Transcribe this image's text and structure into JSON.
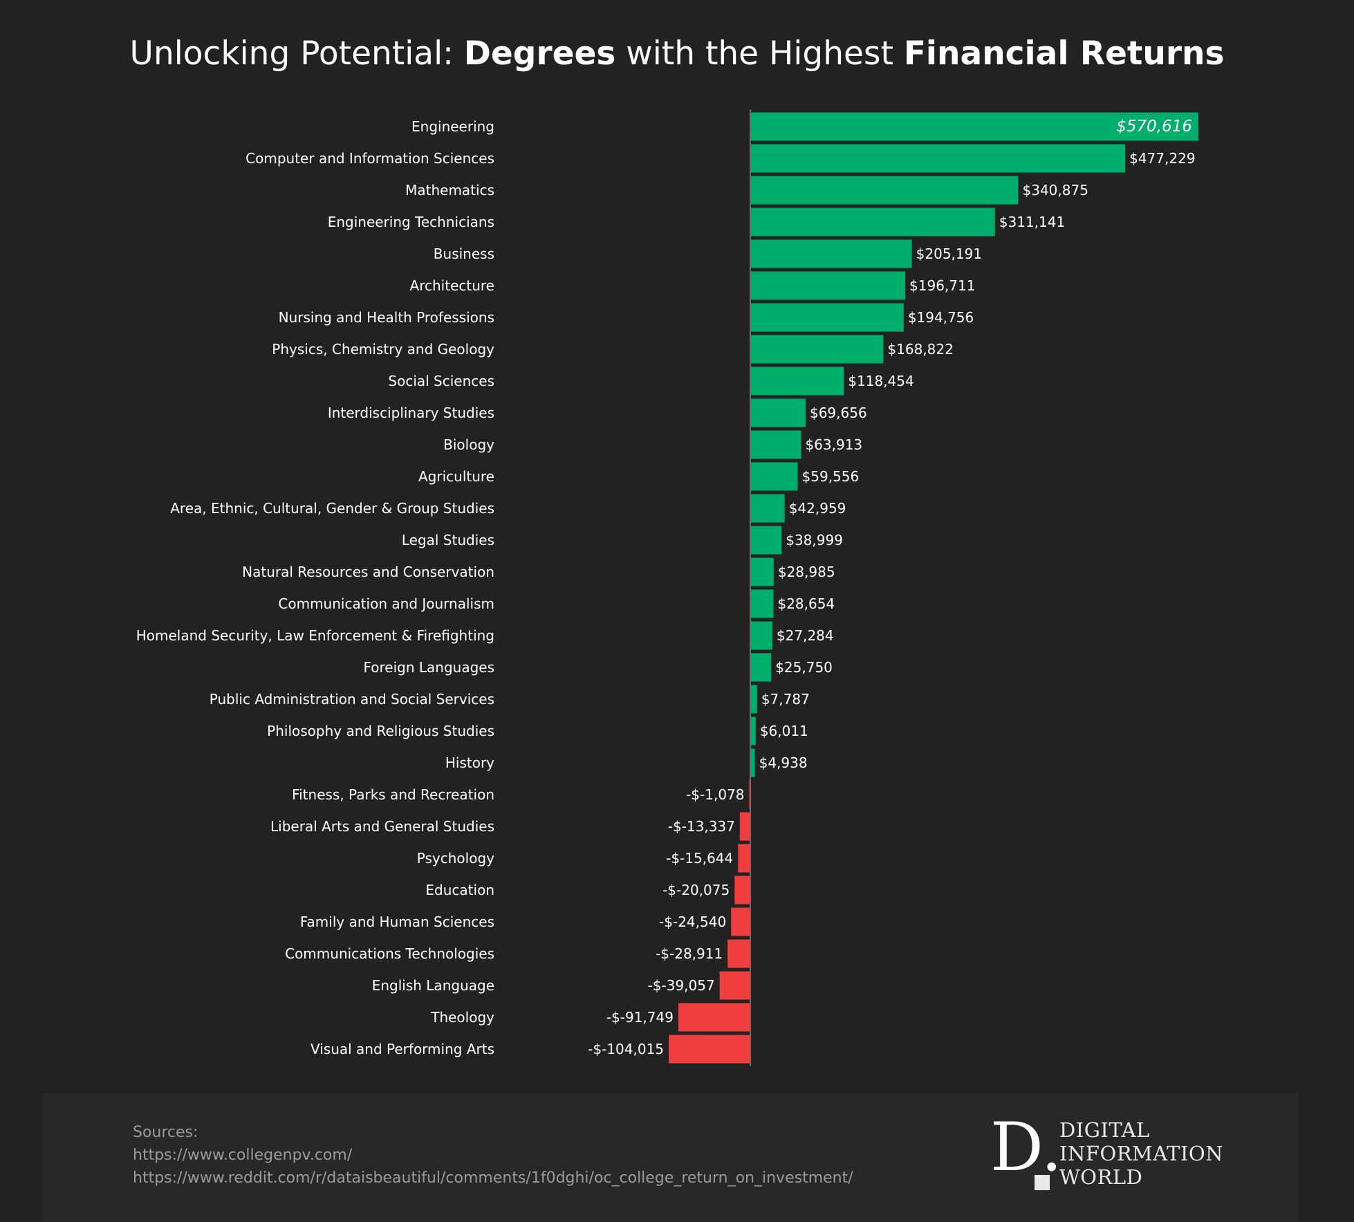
{
  "title": {
    "part1": "Unlocking Potential: ",
    "part2": "Degrees",
    "part3": " with the Highest ",
    "part4": "Financial Returns"
  },
  "colors": {
    "background": "#222222",
    "positive": "#00ae6b",
    "negative": "#f03e3e",
    "text": "#ffffff",
    "footer_bg": "#282828",
    "footer_text": "#9a9a9a"
  },
  "chart_data": {
    "type": "bar",
    "orientation": "horizontal",
    "title": "Unlocking Potential: Degrees with the Highest Financial Returns",
    "categories": [
      "Engineering",
      "Computer and Information Sciences",
      "Mathematics",
      "Engineering Technicians",
      "Business",
      "Architecture",
      "Nursing and Health Professions",
      "Physics, Chemistry and Geology",
      "Social Sciences",
      "Interdisciplinary Studies",
      "Biology",
      "Agriculture",
      "Area, Ethnic, Cultural, Gender & Group Studies",
      "Legal Studies",
      "Natural Resources and Conservation",
      "Communication and Journalism",
      "Homeland Security, Law Enforcement & Firefighting",
      "Foreign Languages",
      "Public Administration and Social Services",
      "Philosophy and Religious Studies",
      "History",
      "Fitness, Parks and Recreation",
      "Liberal Arts and General Studies",
      "Psychology",
      "Education",
      "Family and Human Sciences",
      "Communications Technologies",
      "English Language",
      "Theology",
      "Visual and Performing Arts"
    ],
    "values": [
      570616,
      477229,
      340875,
      311141,
      205191,
      196711,
      194756,
      168822,
      118454,
      69656,
      63913,
      59556,
      42959,
      38999,
      28985,
      28654,
      27284,
      25750,
      7787,
      6011,
      4938,
      -1078,
      -13337,
      -15644,
      -20075,
      -24540,
      -28911,
      -39057,
      -91749,
      -104015
    ],
    "labels": [
      "$570,616",
      "$477,229",
      "$340,875",
      "$311,141",
      "$205,191",
      "$196,711",
      "$194,756",
      "$168,822",
      "$118,454",
      "$69,656",
      "$63,913",
      "$59,556",
      "$42,959",
      "$38,999",
      "$28,985",
      "$28,654",
      "$27,284",
      "$25,750",
      "$7,787",
      "$6,011",
      "$4,938",
      "-$-1,078",
      "-$-13,337",
      "-$-15,644",
      "-$-20,075",
      "-$-24,540",
      "-$-28,911",
      "-$-39,057",
      "-$-91,749",
      "-$-104,015"
    ],
    "xlabel": "",
    "ylabel": "",
    "grid": false
  },
  "footer": {
    "sources_label": "Sources:",
    "source_1": "https://www.collegenpv.com/",
    "source_2": "https://www.reddit.com/r/dataisbeautiful/comments/1f0dghi/oc_college_return_on_investment/",
    "logo_letter": "D.",
    "logo_line_1": "DIGITAL",
    "logo_line_2": "INFORMATION",
    "logo_line_3": "WORLD"
  }
}
